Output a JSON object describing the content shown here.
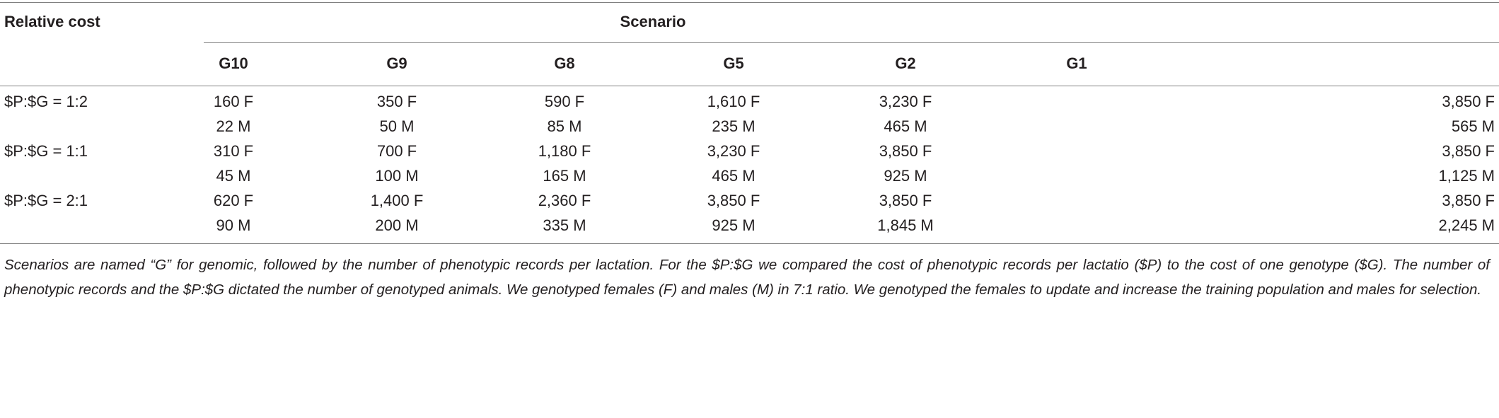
{
  "header": {
    "relative_cost": "Relative cost",
    "scenario": "Scenario",
    "columns": [
      "G10",
      "G9",
      "G8",
      "G5",
      "G2",
      "G1"
    ]
  },
  "rows": [
    {
      "label": "$P:$G = 1:2",
      "cells": [
        "160 F",
        "350 F",
        "590 F",
        "1,610 F",
        "3,230 F",
        "3,850 F"
      ]
    },
    {
      "label": "",
      "cells": [
        "22 M",
        "50 M",
        "85 M",
        "235 M",
        "465 M",
        "565 M"
      ]
    },
    {
      "label": "$P:$G = 1:1",
      "cells": [
        "310 F",
        "700 F",
        "1,180 F",
        "3,230 F",
        "3,850 F",
        "3,850 F"
      ]
    },
    {
      "label": "",
      "cells": [
        "45 M",
        "100 M",
        "165 M",
        "465 M",
        "925 M",
        "1,125 M"
      ]
    },
    {
      "label": "$P:$G = 2:1",
      "cells": [
        "620 F",
        "1,400 F",
        "2,360 F",
        "3,850 F",
        "3,850 F",
        "3,850 F"
      ]
    },
    {
      "label": "",
      "cells": [
        "90 M",
        "200 M",
        "335 M",
        "925 M",
        "1,845 M",
        "2,245 M"
      ]
    }
  ],
  "footnote": "Scenarios are named “G” for genomic, followed by the number of phenotypic records per lactation. For the $P:$G we compared the cost of phenotypic records per lactatio ($P) to the cost of one genotype ($G). The number of phenotypic records and the $P:$G dictated the number of genotyped animals. We genotyped females (F) and males (M) in 7:1 ratio. We genotyped the females to update and increase the training population and males for selection."
}
